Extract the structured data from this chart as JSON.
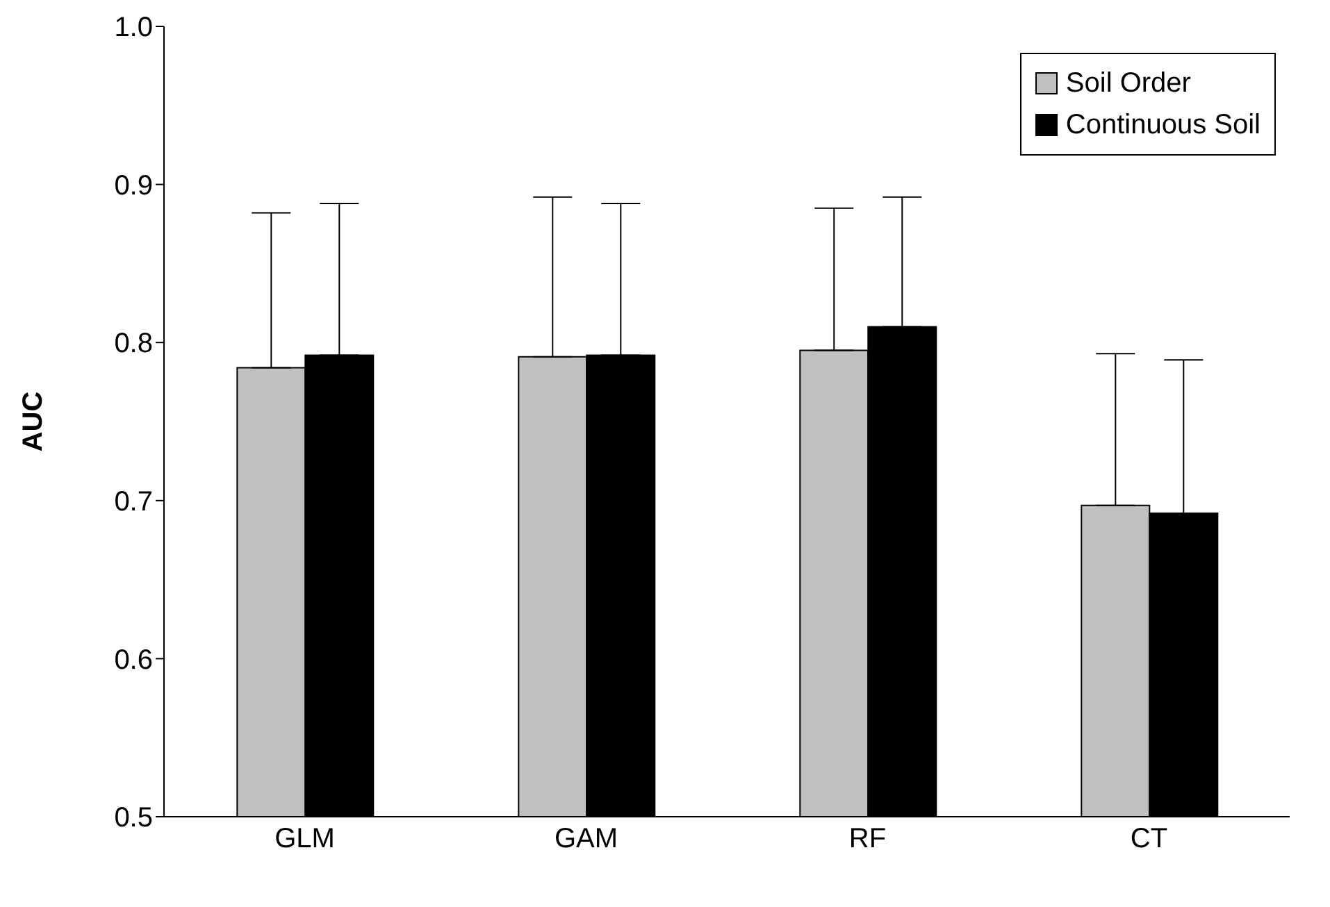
{
  "chart_data": {
    "type": "bar",
    "ylabel": "AUC",
    "categories": [
      "GLM",
      "GAM",
      "RF",
      "CT"
    ],
    "series": [
      {
        "name": "Soil Order",
        "color": "#c0c0c0",
        "values": [
          0.784,
          0.791,
          0.795,
          0.697
        ],
        "errors": [
          [
            0.784,
            0.882
          ],
          [
            0.791,
            0.892
          ],
          [
            0.795,
            0.885
          ],
          [
            0.697,
            0.793
          ]
        ]
      },
      {
        "name": "Continuous Soil",
        "color": "#000000",
        "values": [
          0.792,
          0.792,
          0.81,
          0.692
        ],
        "errors": [
          [
            0.792,
            0.888
          ],
          [
            0.792,
            0.888
          ],
          [
            0.81,
            0.892
          ],
          [
            0.692,
            0.789
          ]
        ]
      }
    ],
    "ylim": [
      0.5,
      1.0
    ],
    "yticks": [
      0.5,
      0.6,
      0.7,
      0.8,
      0.9,
      {
        "value": 1,
        "label": "1.0"
      }
    ],
    "grid": false,
    "legend": "top right"
  }
}
